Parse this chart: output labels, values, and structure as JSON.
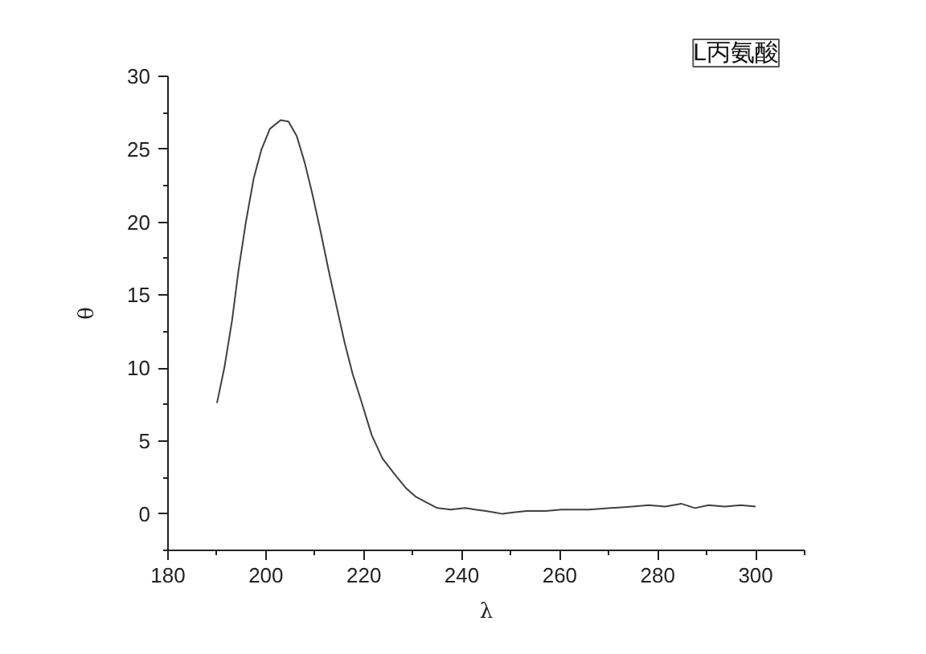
{
  "chart_data": {
    "type": "line",
    "xlabel": "λ",
    "ylabel": "θ",
    "annotations": [
      "L丙氨酸"
    ],
    "xlim": [
      180,
      310
    ],
    "xticks": [
      180,
      200,
      220,
      240,
      260,
      280,
      300
    ],
    "ylim": [
      -2.5,
      30
    ],
    "yticks": [
      0,
      5,
      10,
      15,
      20,
      25,
      30
    ],
    "grid": false,
    "marker": "none",
    "line_style": "solid",
    "series": [
      {
        "color": "#404040",
        "x": [
          190,
          191.5,
          193.1,
          194.4,
          195.9,
          197.5,
          199.1,
          200.8,
          203.0,
          204.6,
          206.3,
          207.9,
          209.5,
          211.2,
          212.8,
          214.5,
          216.1,
          217.7,
          219.4,
          221.6,
          223.8,
          226.1,
          228.5,
          230.5,
          232.7,
          235.0,
          237.7,
          240.7,
          242.7,
          244.9,
          246.6,
          248.3,
          250.5,
          253.2,
          257.1,
          260.4,
          262.7,
          266.0,
          270.4,
          274.8,
          278.2,
          281.5,
          284.8,
          287.6,
          290.4,
          293.7,
          297.0,
          300
        ],
        "values": [
          7.6,
          10.0,
          13.3,
          16.7,
          20.0,
          23.0,
          25.0,
          26.4,
          27.0,
          26.9,
          25.9,
          24.1,
          21.9,
          19.3,
          16.7,
          14.1,
          11.7,
          9.6,
          7.8,
          5.4,
          3.8,
          2.8,
          1.8,
          1.2,
          0.8,
          0.4,
          0.3,
          0.4,
          0.3,
          0.2,
          0.1,
          0.0,
          0.1,
          0.2,
          0.2,
          0.3,
          0.3,
          0.3,
          0.4,
          0.5,
          0.6,
          0.5,
          0.7,
          0.4,
          0.6,
          0.5,
          0.6,
          0.5
        ]
      }
    ]
  }
}
